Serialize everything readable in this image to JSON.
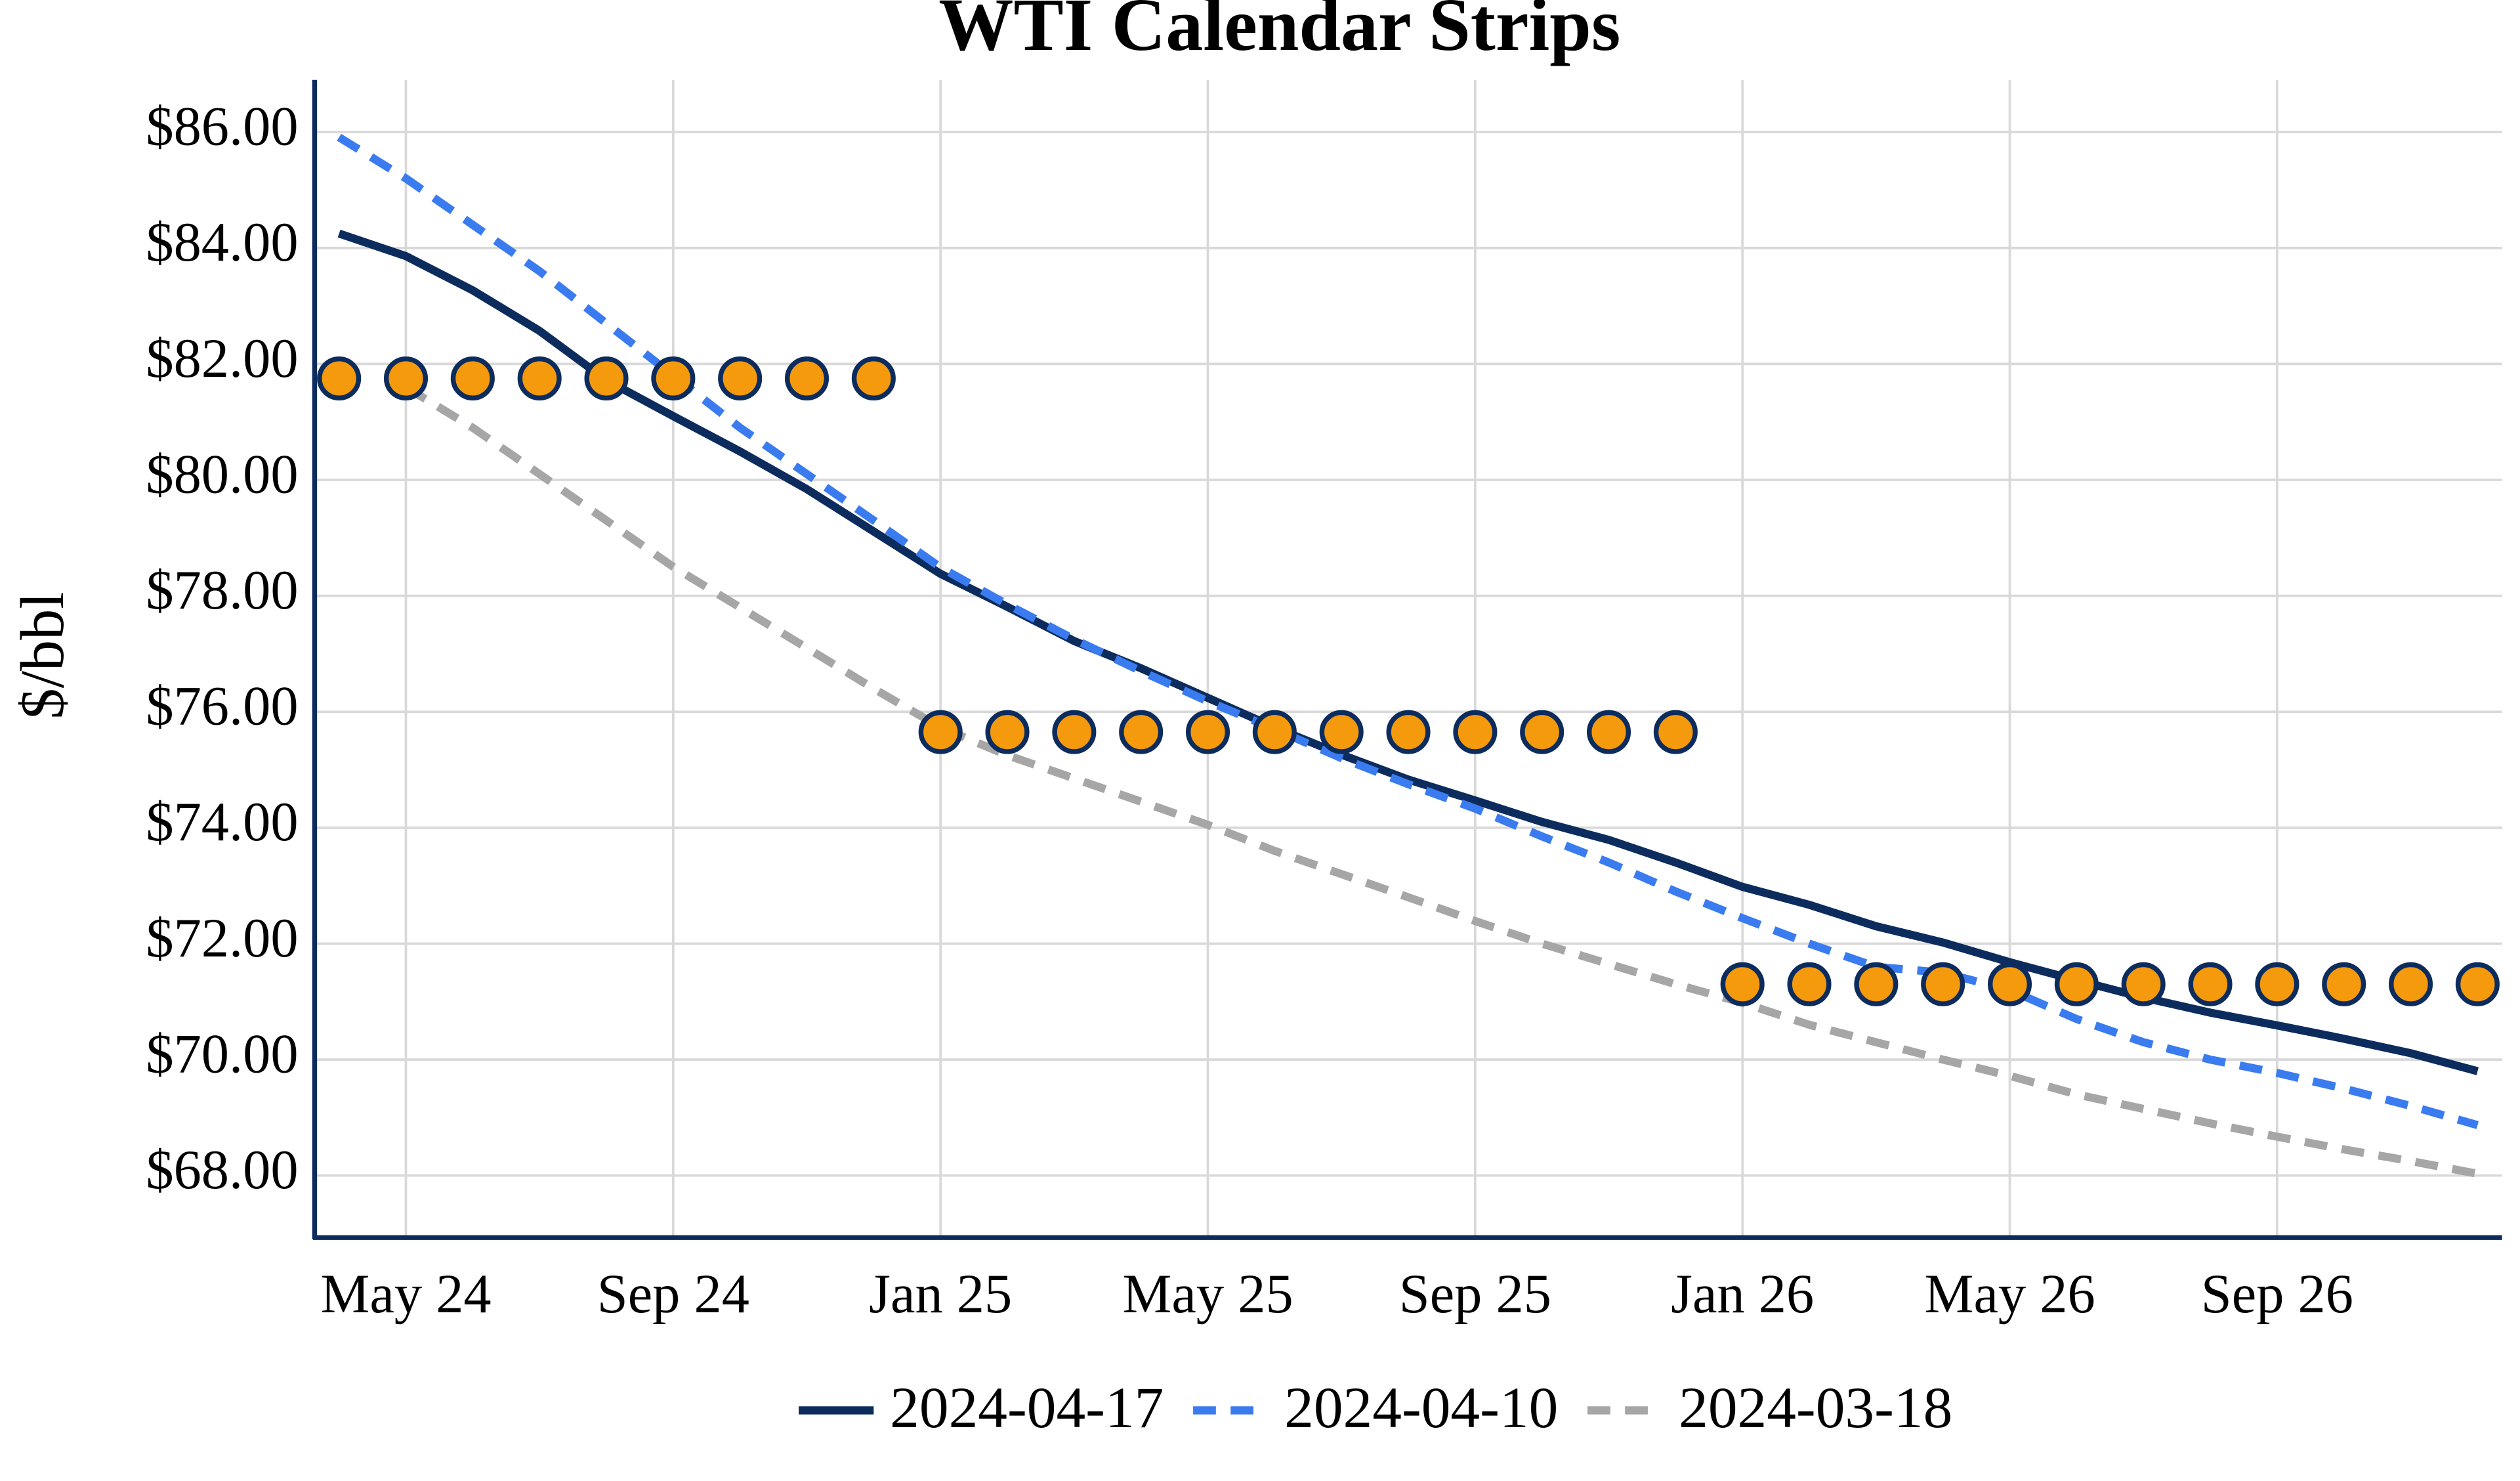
{
  "chart_data": {
    "type": "line",
    "title": "WTI Calendar Strips",
    "y_label": "$/bbl",
    "x": [
      "2024-04",
      "2024-05",
      "2024-06",
      "2024-07",
      "2024-08",
      "2024-09",
      "2024-10",
      "2024-11",
      "2024-12",
      "2025-01",
      "2025-02",
      "2025-03",
      "2025-04",
      "2025-05",
      "2025-06",
      "2025-07",
      "2025-08",
      "2025-09",
      "2025-10",
      "2025-11",
      "2025-12",
      "2026-01",
      "2026-02",
      "2026-03",
      "2026-04",
      "2026-05",
      "2026-06",
      "2026-07",
      "2026-08",
      "2026-09",
      "2026-10",
      "2026-11",
      "2026-12"
    ],
    "xticks": [
      {
        "value": "2024-05",
        "label": "May 24"
      },
      {
        "value": "2024-09",
        "label": "Sep 24"
      },
      {
        "value": "2025-01",
        "label": "Jan 25"
      },
      {
        "value": "2025-05",
        "label": "May 25"
      },
      {
        "value": "2025-09",
        "label": "Sep 25"
      },
      {
        "value": "2026-01",
        "label": "Jan 26"
      },
      {
        "value": "2026-05",
        "label": "May 26"
      },
      {
        "value": "2026-09",
        "label": "Sep 26"
      }
    ],
    "ylim": [
      66.93,
      86.9
    ],
    "yticks": [
      {
        "value": 68,
        "label": "$68.00"
      },
      {
        "value": 70,
        "label": "$70.00"
      },
      {
        "value": 72,
        "label": "$72.00"
      },
      {
        "value": 74,
        "label": "$74.00"
      },
      {
        "value": 76,
        "label": "$76.00"
      },
      {
        "value": 78,
        "label": "$78.00"
      },
      {
        "value": 80,
        "label": "$80.00"
      },
      {
        "value": 82,
        "label": "$82.00"
      },
      {
        "value": 84,
        "label": "$84.00"
      },
      {
        "value": 86,
        "label": "$86.00"
      }
    ],
    "grid": true,
    "legend": "bottom",
    "series": [
      {
        "name": "2024-04-17",
        "color": "#0d2c5e",
        "dash": "solid",
        "values": [
          84.25,
          83.86,
          83.27,
          82.57,
          81.72,
          81.1,
          80.49,
          79.84,
          79.11,
          78.38,
          77.81,
          77.22,
          76.75,
          76.24,
          75.73,
          75.26,
          74.83,
          74.47,
          74.1,
          73.79,
          73.4,
          72.98,
          72.67,
          72.3,
          72.02,
          71.68,
          71.37,
          71.07,
          70.81,
          70.59,
          70.36,
          70.11,
          69.8
        ]
      },
      {
        "name": "2024-04-10",
        "color": "#3a7cf0",
        "dash": "dashed",
        "values": [
          85.91,
          85.2,
          84.4,
          83.6,
          82.7,
          81.8,
          80.9,
          80.1,
          79.3,
          78.49,
          77.85,
          77.25,
          76.7,
          76.18,
          75.7,
          75.2,
          74.75,
          74.33,
          73.85,
          73.4,
          72.9,
          72.44,
          72.0,
          71.6,
          71.5,
          71.2,
          70.7,
          70.3,
          70.0,
          69.77,
          69.5,
          69.2,
          68.87
        ]
      },
      {
        "name": "2024-03-18",
        "color": "#a6a6a6",
        "dash": "dashed",
        "values": [
          null,
          81.6,
          80.9,
          80.1,
          79.3,
          78.5,
          77.8,
          77.1,
          76.4,
          75.73,
          75.25,
          74.85,
          74.45,
          74.05,
          73.6,
          73.2,
          72.8,
          72.39,
          72.0,
          71.65,
          71.3,
          70.98,
          70.6,
          70.3,
          70.0,
          69.72,
          69.4,
          69.15,
          68.9,
          68.67,
          68.45,
          68.25,
          68.03
        ]
      },
      {
        "color": "#f59a0c",
        "edge": "#0d2c5e",
        "marker": "circle",
        "values": [
          81.75,
          81.75,
          81.75,
          81.75,
          81.75,
          81.75,
          81.75,
          81.75,
          81.75,
          75.65,
          75.65,
          75.65,
          75.65,
          75.65,
          75.65,
          75.65,
          75.65,
          75.65,
          75.65,
          75.65,
          75.65,
          71.3,
          71.3,
          71.3,
          71.3,
          71.3,
          71.3,
          71.3,
          71.3,
          71.3,
          71.3,
          71.3,
          71.3
        ]
      }
    ]
  }
}
